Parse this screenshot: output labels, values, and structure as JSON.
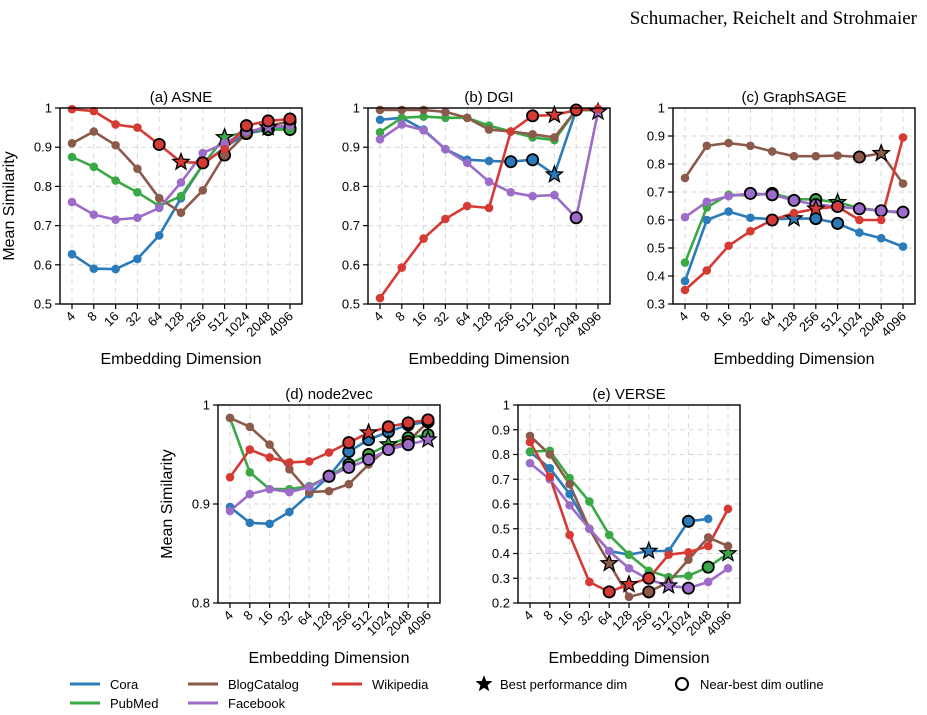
{
  "header": {
    "authors": "Schumacher, Reichelt and Strohmaier"
  },
  "legend": {
    "series": [
      {
        "name": "Cora",
        "color": "#2b7bba"
      },
      {
        "name": "PubMed",
        "color": "#3aa845"
      },
      {
        "name": "BlogCatalog",
        "color": "#8c5a4a"
      },
      {
        "name": "Facebook",
        "color": "#9d6cc9"
      },
      {
        "name": "Wikipedia",
        "color": "#d63a34"
      }
    ],
    "best_label": "Best performance dim",
    "outline_label": "Near-best dim outline"
  },
  "chart_data": [
    {
      "type": "line",
      "title": "(a) ASNE",
      "xlabel": "Embedding Dimension",
      "ylabel": "Mean Similarity",
      "categories": [
        "4",
        "8",
        "16",
        "32",
        "64",
        "128",
        "256",
        "512",
        "1024",
        "2048",
        "4096"
      ],
      "ylim": [
        0.5,
        1.0
      ],
      "yticks": [
        0.5,
        0.6,
        0.7,
        0.8,
        0.9,
        1.0
      ],
      "yticklabels": [
        "0.5",
        "0.6",
        "0.7",
        "0.8",
        "0.9",
        "1"
      ],
      "grid": true,
      "series": [
        {
          "name": "Cora",
          "values": [
            0.627,
            0.59,
            0.589,
            0.615,
            0.675,
            0.77,
            0.855,
            0.9,
            0.935,
            0.945,
            0.948
          ],
          "best": null,
          "outline": [
            8,
            9,
            10
          ]
        },
        {
          "name": "PubMed",
          "values": [
            0.875,
            0.85,
            0.815,
            0.785,
            0.75,
            0.775,
            0.855,
            0.925,
            0.94,
            0.945,
            0.945
          ],
          "best": 7,
          "outline": [
            8,
            9,
            10
          ]
        },
        {
          "name": "BlogCatalog",
          "values": [
            0.91,
            0.94,
            0.905,
            0.845,
            0.77,
            0.733,
            0.79,
            0.88,
            0.935,
            0.955,
            0.965
          ],
          "best": null,
          "outline": [
            7,
            8,
            9,
            10
          ]
        },
        {
          "name": "Facebook",
          "values": [
            0.76,
            0.728,
            0.715,
            0.72,
            0.745,
            0.81,
            0.885,
            0.91,
            0.94,
            0.95,
            0.955
          ],
          "best": 9,
          "outline": []
        },
        {
          "name": "Wikipedia",
          "values": [
            0.997,
            0.992,
            0.958,
            0.95,
            0.907,
            0.862,
            0.86,
            0.895,
            0.955,
            0.967,
            0.972
          ],
          "best": 5,
          "outline": [
            4,
            6,
            8,
            9,
            10
          ]
        }
      ]
    },
    {
      "type": "line",
      "title": "(b) DGI",
      "xlabel": "Embedding Dimension",
      "ylabel": "",
      "categories": [
        "4",
        "8",
        "16",
        "32",
        "64",
        "128",
        "256",
        "512",
        "1024",
        "2048",
        "4096"
      ],
      "ylim": [
        0.5,
        1.0
      ],
      "yticks": [
        0.5,
        0.6,
        0.7,
        0.8,
        0.9,
        1.0
      ],
      "yticklabels": [
        "0.5",
        "0.6",
        "0.7",
        "0.8",
        "0.9",
        "1"
      ],
      "grid": true,
      "series": [
        {
          "name": "Cora",
          "values": [
            0.97,
            0.975,
            0.945,
            0.895,
            0.868,
            0.865,
            0.863,
            0.868,
            0.83,
            0.995,
            0.995
          ],
          "best": 8,
          "outline": [
            6,
            7
          ]
        },
        {
          "name": "PubMed",
          "values": [
            0.938,
            0.975,
            0.978,
            0.975,
            0.975,
            0.955,
            0.94,
            0.925,
            0.918,
            0.995,
            0.995
          ],
          "best": null,
          "outline": []
        },
        {
          "name": "BlogCatalog",
          "values": [
            0.995,
            0.995,
            0.995,
            0.99,
            0.975,
            0.945,
            0.94,
            0.933,
            0.925,
            0.995,
            0.995
          ],
          "best": null,
          "outline": []
        },
        {
          "name": "Facebook",
          "values": [
            0.92,
            0.958,
            0.943,
            0.895,
            0.86,
            0.812,
            0.785,
            0.775,
            0.778,
            0.72,
            0.99
          ],
          "best": 10,
          "outline": [
            9
          ]
        },
        {
          "name": "Wikipedia",
          "values": [
            0.515,
            0.593,
            0.667,
            0.717,
            0.75,
            0.745,
            0.94,
            0.98,
            0.982,
            0.995,
            0.998
          ],
          "best": 8,
          "outline": [
            7,
            9
          ]
        }
      ]
    },
    {
      "type": "line",
      "title": "(c) GraphSAGE",
      "xlabel": "Embedding Dimension",
      "ylabel": "",
      "categories": [
        "4",
        "8",
        "16",
        "32",
        "64",
        "128",
        "256",
        "512",
        "1024",
        "2048",
        "4096"
      ],
      "ylim": [
        0.3,
        1.0
      ],
      "yticks": [
        0.3,
        0.4,
        0.5,
        0.6,
        0.7,
        0.8,
        0.9,
        1.0
      ],
      "yticklabels": [
        "0.3",
        "0.4",
        "0.5",
        "0.6",
        "0.7",
        "0.8",
        "0.9",
        "1"
      ],
      "grid": true,
      "series": [
        {
          "name": "Cora",
          "values": [
            0.382,
            0.6,
            0.63,
            0.608,
            0.603,
            0.605,
            0.605,
            0.588,
            0.555,
            0.535,
            0.505
          ],
          "best": 5,
          "outline": [
            6,
            7
          ]
        },
        {
          "name": "PubMed",
          "values": [
            0.448,
            0.645,
            0.69,
            0.688,
            0.695,
            0.675,
            0.673,
            0.663,
            0.643,
            0.633,
            0.625
          ],
          "best": 7,
          "outline": [
            4,
            6
          ]
        },
        {
          "name": "BlogCatalog",
          "values": [
            0.75,
            0.865,
            0.875,
            0.865,
            0.845,
            0.828,
            0.828,
            0.83,
            0.825,
            0.838,
            0.73
          ],
          "best": 9,
          "outline": [
            8
          ]
        },
        {
          "name": "Facebook",
          "values": [
            0.61,
            0.665,
            0.685,
            0.695,
            0.69,
            0.67,
            0.655,
            0.648,
            0.64,
            0.633,
            0.628
          ],
          "best": null,
          "outline": [
            3,
            4,
            5,
            6,
            7,
            8,
            9,
            10
          ]
        },
        {
          "name": "Wikipedia",
          "values": [
            0.35,
            0.42,
            0.508,
            0.56,
            0.6,
            0.625,
            0.64,
            0.648,
            0.6,
            0.6,
            0.895
          ],
          "best": 6,
          "outline": [
            4
          ]
        }
      ]
    },
    {
      "type": "line",
      "title": "(d) node2vec",
      "xlabel": "Embedding Dimension",
      "ylabel": "Mean Similarity",
      "categories": [
        "4",
        "8",
        "16",
        "32",
        "64",
        "128",
        "256",
        "512",
        "1024",
        "2048",
        "4096"
      ],
      "ylim": [
        0.8,
        1.0
      ],
      "yticks": [
        0.8,
        0.9,
        1.0
      ],
      "yticklabels": [
        "0.8",
        "0.9",
        "1"
      ],
      "grid": true,
      "series": [
        {
          "name": "Cora",
          "values": [
            0.897,
            0.881,
            0.88,
            0.892,
            0.91,
            0.928,
            0.953,
            0.965,
            0.973,
            0.98,
            0.983
          ],
          "best": null,
          "outline": [
            6,
            7,
            8,
            9,
            10
          ]
        },
        {
          "name": "PubMed",
          "values": [
            0.987,
            0.932,
            0.915,
            0.915,
            0.918,
            0.928,
            0.94,
            0.95,
            0.96,
            0.967,
            0.97
          ],
          "best": 8,
          "outline": [
            5,
            6,
            7,
            9,
            10
          ]
        },
        {
          "name": "BlogCatalog",
          "values": [
            0.987,
            0.978,
            0.96,
            0.935,
            0.912,
            0.913,
            0.92,
            0.94,
            0.957,
            0.963,
            0.983
          ],
          "best": null,
          "outline": [
            9,
            10
          ]
        },
        {
          "name": "Facebook",
          "values": [
            0.893,
            0.91,
            0.915,
            0.912,
            0.917,
            0.928,
            0.937,
            0.945,
            0.955,
            0.96,
            0.965
          ],
          "best": 10,
          "outline": [
            5,
            6,
            7,
            8,
            9
          ]
        },
        {
          "name": "Wikipedia",
          "values": [
            0.927,
            0.955,
            0.947,
            0.942,
            0.943,
            0.952,
            0.962,
            0.972,
            0.978,
            0.982,
            0.985
          ],
          "best": 7,
          "outline": [
            6,
            8,
            9,
            10
          ]
        }
      ]
    },
    {
      "type": "line",
      "title": "(e) VERSE",
      "xlabel": "Embedding Dimension",
      "ylabel": "",
      "categories": [
        "4",
        "8",
        "16",
        "32",
        "64",
        "128",
        "256",
        "512",
        "1024",
        "2048",
        "4096"
      ],
      "ylim": [
        0.2,
        1.0
      ],
      "yticks": [
        0.2,
        0.3,
        0.4,
        0.5,
        0.6,
        0.7,
        0.8,
        0.9,
        1.0
      ],
      "yticklabels": [
        "0.2",
        "0.3",
        "0.4",
        "0.5",
        "0.6",
        "0.7",
        "0.8",
        "0.9",
        "1"
      ],
      "grid": true,
      "series": [
        {
          "name": "Cora",
          "values": [
            0.81,
            0.745,
            0.64,
            0.5,
            0.41,
            0.395,
            0.41,
            0.41,
            0.53,
            0.54,
            null
          ],
          "best": 6,
          "outline": [
            8
          ]
        },
        {
          "name": "PubMed",
          "values": [
            0.812,
            0.815,
            0.705,
            0.61,
            0.475,
            0.395,
            0.33,
            0.305,
            0.31,
            0.345,
            0.4
          ],
          "best": 10,
          "outline": [
            9
          ]
        },
        {
          "name": "BlogCatalog",
          "values": [
            0.875,
            0.8,
            0.68,
            0.5,
            0.36,
            0.225,
            0.245,
            0.285,
            0.375,
            0.465,
            0.43
          ],
          "best": 4,
          "outline": [
            6
          ]
        },
        {
          "name": "Facebook",
          "values": [
            0.765,
            0.7,
            0.595,
            0.5,
            0.41,
            0.34,
            0.295,
            0.27,
            0.26,
            0.285,
            0.34
          ],
          "best": 7,
          "outline": [
            8
          ]
        },
        {
          "name": "Wikipedia",
          "values": [
            0.85,
            0.71,
            0.475,
            0.285,
            0.245,
            0.275,
            0.3,
            0.395,
            0.405,
            0.43,
            0.58
          ],
          "best": 5,
          "outline": [
            4,
            6
          ]
        }
      ]
    }
  ]
}
